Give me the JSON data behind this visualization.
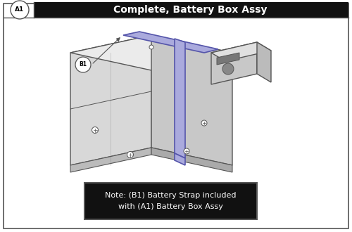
{
  "title": "Complete, Battery Box Assy",
  "part_a1": "A1",
  "part_b1": "B1",
  "note_text": "Note: (B1) Battery Strap included\nwith (A1) Battery Box Assy",
  "bg_color": "#ffffff",
  "border_color": "#555555",
  "header_bg": "#111111",
  "header_text_color": "#ffffff",
  "note_bg": "#111111",
  "note_text_color": "#ffffff",
  "line_color": "#555555",
  "strap_color": "#5555aa",
  "strap_fill": "#aaaadd",
  "face_left": "#d8d8d8",
  "face_top": "#ebebeb",
  "face_right": "#c8c8c8",
  "face_front_right": "#d0d0d0",
  "connector_face": "#c8c8c8",
  "connector_top": "#e0e0e0",
  "connector_slot": "#888888",
  "fig_width": 5.0,
  "fig_height": 3.3,
  "dpi": 100
}
